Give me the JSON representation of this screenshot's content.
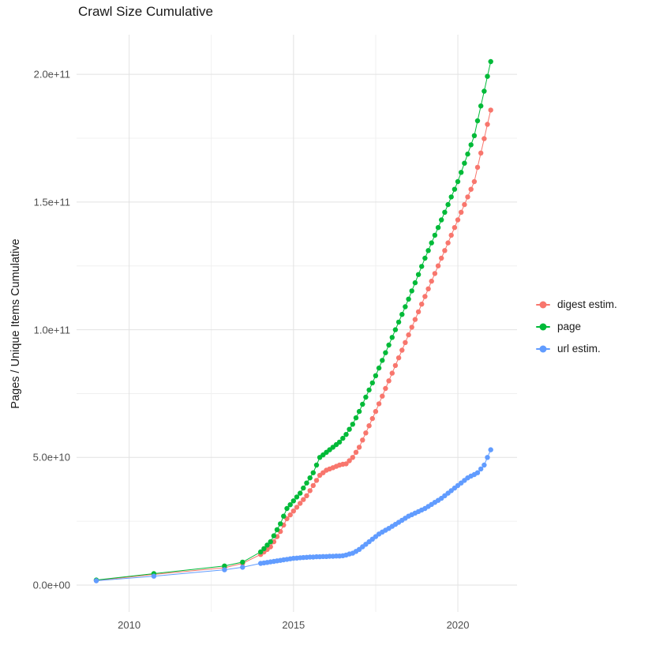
{
  "chart_data": {
    "type": "scatter",
    "title": "Crawl Size Cumulative",
    "xlabel": "",
    "ylabel": "Pages / Unique Items Cumulative",
    "legend_position": "right",
    "grid": true,
    "x_ticks": [
      2010,
      2015,
      2020
    ],
    "x_tick_labels": [
      "2010",
      "2015",
      "2020"
    ],
    "x_minor_gridlines": [
      2012.5,
      2017.5
    ],
    "y_unit": "1e9 (values below are billions of pages / items)",
    "y_ticks_billions": [
      0,
      50,
      100,
      150,
      200
    ],
    "y_tick_labels": [
      "0.0e+00",
      "5.0e+10",
      "1.0e+11",
      "1.5e+11",
      "2.0e+11"
    ],
    "y_minor_gridlines_billions": [
      25,
      75,
      125,
      175
    ],
    "xlim": [
      2008.4,
      2021.8
    ],
    "ylim_billions": [
      -10.5,
      215.5
    ],
    "series": [
      {
        "name": "digest estim.",
        "color": "#F8766D",
        "points": [
          [
            2009,
            1.8
          ],
          [
            2010.75,
            4.2
          ],
          [
            2012.9,
            6.8
          ],
          [
            2013.45,
            8.5
          ],
          [
            2014,
            12
          ],
          [
            2014.1,
            13
          ],
          [
            2014.2,
            14
          ],
          [
            2014.3,
            15
          ],
          [
            2014.4,
            17
          ],
          [
            2014.5,
            19
          ],
          [
            2014.6,
            21
          ],
          [
            2014.7,
            23.5
          ],
          [
            2014.8,
            26
          ],
          [
            2014.9,
            27.5
          ],
          [
            2015,
            29
          ],
          [
            2015.1,
            30.5
          ],
          [
            2015.2,
            32
          ],
          [
            2015.3,
            33.5
          ],
          [
            2015.4,
            35
          ],
          [
            2015.5,
            37
          ],
          [
            2015.6,
            39
          ],
          [
            2015.7,
            41
          ],
          [
            2015.8,
            43
          ],
          [
            2015.9,
            44
          ],
          [
            2016,
            45
          ],
          [
            2016.1,
            45.5
          ],
          [
            2016.2,
            46
          ],
          [
            2016.3,
            46.5
          ],
          [
            2016.4,
            47
          ],
          [
            2016.5,
            47.3
          ],
          [
            2016.6,
            47.5
          ],
          [
            2016.7,
            48.7
          ],
          [
            2016.8,
            50
          ],
          [
            2016.9,
            52
          ],
          [
            2017,
            54
          ],
          [
            2017.1,
            56.8
          ],
          [
            2017.2,
            59.6
          ],
          [
            2017.3,
            62.4
          ],
          [
            2017.4,
            65.2
          ],
          [
            2017.5,
            68
          ],
          [
            2017.6,
            71
          ],
          [
            2017.7,
            74
          ],
          [
            2017.8,
            77
          ],
          [
            2017.9,
            80
          ],
          [
            2018,
            83
          ],
          [
            2018.1,
            86
          ],
          [
            2018.2,
            89
          ],
          [
            2018.3,
            92
          ],
          [
            2018.4,
            95
          ],
          [
            2018.5,
            98
          ],
          [
            2018.6,
            101
          ],
          [
            2018.7,
            104
          ],
          [
            2018.8,
            107
          ],
          [
            2018.9,
            110
          ],
          [
            2019,
            113
          ],
          [
            2019.1,
            116
          ],
          [
            2019.2,
            119
          ],
          [
            2019.3,
            122
          ],
          [
            2019.4,
            125
          ],
          [
            2019.5,
            128
          ],
          [
            2019.6,
            131
          ],
          [
            2019.7,
            134
          ],
          [
            2019.8,
            137
          ],
          [
            2019.9,
            140
          ],
          [
            2020,
            143
          ],
          [
            2020.1,
            146
          ],
          [
            2020.2,
            149
          ],
          [
            2020.3,
            152
          ],
          [
            2020.4,
            155
          ],
          [
            2020.5,
            158
          ],
          [
            2020.6,
            163.6
          ],
          [
            2020.7,
            169.2
          ],
          [
            2020.8,
            174.8
          ],
          [
            2020.9,
            180.4
          ],
          [
            2021,
            186
          ]
        ]
      },
      {
        "name": "page",
        "color": "#00BA38",
        "points": [
          [
            2009,
            2
          ],
          [
            2010.75,
            4.5
          ],
          [
            2012.9,
            7.5
          ],
          [
            2013.45,
            9
          ],
          [
            2014,
            13
          ],
          [
            2014.1,
            14.3
          ],
          [
            2014.2,
            15.7
          ],
          [
            2014.3,
            17
          ],
          [
            2014.4,
            19.3
          ],
          [
            2014.5,
            21.7
          ],
          [
            2014.6,
            24
          ],
          [
            2014.7,
            27
          ],
          [
            2014.8,
            30
          ],
          [
            2014.9,
            31.5
          ],
          [
            2015,
            33
          ],
          [
            2015.1,
            34.5
          ],
          [
            2015.2,
            36
          ],
          [
            2015.3,
            38
          ],
          [
            2015.4,
            40
          ],
          [
            2015.5,
            42
          ],
          [
            2015.6,
            44
          ],
          [
            2015.7,
            47
          ],
          [
            2015.8,
            50
          ],
          [
            2015.9,
            51
          ],
          [
            2016,
            52
          ],
          [
            2016.1,
            53
          ],
          [
            2016.2,
            54
          ],
          [
            2016.3,
            55
          ],
          [
            2016.4,
            56
          ],
          [
            2016.5,
            57.5
          ],
          [
            2016.6,
            59
          ],
          [
            2016.7,
            61
          ],
          [
            2016.8,
            63
          ],
          [
            2016.9,
            65.5
          ],
          [
            2017,
            68
          ],
          [
            2017.1,
            70.8
          ],
          [
            2017.2,
            73.6
          ],
          [
            2017.3,
            76.4
          ],
          [
            2017.4,
            79.2
          ],
          [
            2017.5,
            82
          ],
          [
            2017.6,
            85
          ],
          [
            2017.7,
            88
          ],
          [
            2017.8,
            91
          ],
          [
            2017.9,
            94
          ],
          [
            2018,
            97
          ],
          [
            2018.1,
            100
          ],
          [
            2018.2,
            103
          ],
          [
            2018.3,
            106
          ],
          [
            2018.4,
            109
          ],
          [
            2018.5,
            112
          ],
          [
            2018.6,
            115.2
          ],
          [
            2018.7,
            118.4
          ],
          [
            2018.8,
            121.6
          ],
          [
            2018.9,
            124.8
          ],
          [
            2019,
            128
          ],
          [
            2019.1,
            131
          ],
          [
            2019.2,
            134
          ],
          [
            2019.3,
            137
          ],
          [
            2019.4,
            140
          ],
          [
            2019.5,
            143
          ],
          [
            2019.6,
            146
          ],
          [
            2019.7,
            149
          ],
          [
            2019.8,
            152
          ],
          [
            2019.9,
            155
          ],
          [
            2020,
            158
          ],
          [
            2020.1,
            161.6
          ],
          [
            2020.2,
            165.2
          ],
          [
            2020.3,
            168.8
          ],
          [
            2020.4,
            172.4
          ],
          [
            2020.5,
            176
          ],
          [
            2020.6,
            181.8
          ],
          [
            2020.7,
            187.6
          ],
          [
            2020.8,
            193.4
          ],
          [
            2020.9,
            199.2
          ],
          [
            2021,
            205
          ]
        ]
      },
      {
        "name": "url estim.",
        "color": "#619CFF",
        "points": [
          [
            2009,
            1.7
          ],
          [
            2010.75,
            3.5
          ],
          [
            2012.9,
            6
          ],
          [
            2013.45,
            7
          ],
          [
            2014,
            8.5
          ],
          [
            2014.1,
            8.7
          ],
          [
            2014.2,
            8.9
          ],
          [
            2014.3,
            9.1
          ],
          [
            2014.4,
            9.3
          ],
          [
            2014.5,
            9.5
          ],
          [
            2014.6,
            9.7
          ],
          [
            2014.7,
            9.9
          ],
          [
            2014.8,
            10.1
          ],
          [
            2014.9,
            10.3
          ],
          [
            2015,
            10.5
          ],
          [
            2015.1,
            10.6
          ],
          [
            2015.2,
            10.7
          ],
          [
            2015.3,
            10.8
          ],
          [
            2015.4,
            10.9
          ],
          [
            2015.5,
            11
          ],
          [
            2015.6,
            11
          ],
          [
            2015.7,
            11.1
          ],
          [
            2015.8,
            11.1
          ],
          [
            2015.9,
            11.2
          ],
          [
            2016,
            11.2
          ],
          [
            2016.1,
            11.3
          ],
          [
            2016.2,
            11.3
          ],
          [
            2016.3,
            11.4
          ],
          [
            2016.4,
            11.4
          ],
          [
            2016.5,
            11.5
          ],
          [
            2016.6,
            11.8
          ],
          [
            2016.7,
            12.2
          ],
          [
            2016.8,
            12.5
          ],
          [
            2016.9,
            13.2
          ],
          [
            2017,
            14
          ],
          [
            2017.1,
            15
          ],
          [
            2017.2,
            16
          ],
          [
            2017.3,
            17
          ],
          [
            2017.4,
            18
          ],
          [
            2017.5,
            19
          ],
          [
            2017.6,
            20
          ],
          [
            2017.7,
            20.8
          ],
          [
            2017.8,
            21.5
          ],
          [
            2017.9,
            22.2
          ],
          [
            2018,
            23
          ],
          [
            2018.1,
            23.8
          ],
          [
            2018.2,
            24.6
          ],
          [
            2018.3,
            25.4
          ],
          [
            2018.4,
            26.2
          ],
          [
            2018.5,
            27
          ],
          [
            2018.6,
            27.6
          ],
          [
            2018.7,
            28.2
          ],
          [
            2018.8,
            28.8
          ],
          [
            2018.9,
            29.4
          ],
          [
            2019,
            30
          ],
          [
            2019.1,
            30.8
          ],
          [
            2019.2,
            31.6
          ],
          [
            2019.3,
            32.4
          ],
          [
            2019.4,
            33.2
          ],
          [
            2019.5,
            34
          ],
          [
            2019.6,
            35
          ],
          [
            2019.7,
            36
          ],
          [
            2019.8,
            37
          ],
          [
            2019.9,
            38
          ],
          [
            2020,
            39
          ],
          [
            2020.1,
            40
          ],
          [
            2020.2,
            41
          ],
          [
            2020.3,
            42
          ],
          [
            2020.4,
            42.7
          ],
          [
            2020.5,
            43.3
          ],
          [
            2020.6,
            44
          ],
          [
            2020.7,
            45.5
          ],
          [
            2020.8,
            47
          ],
          [
            2020.9,
            50
          ],
          [
            2021,
            53
          ]
        ]
      }
    ],
    "style": {
      "major_grid_color": "#e2e2e2",
      "minor_grid_color": "#f0f0f0",
      "point_radius": 3.2,
      "line_width": 1
    }
  }
}
